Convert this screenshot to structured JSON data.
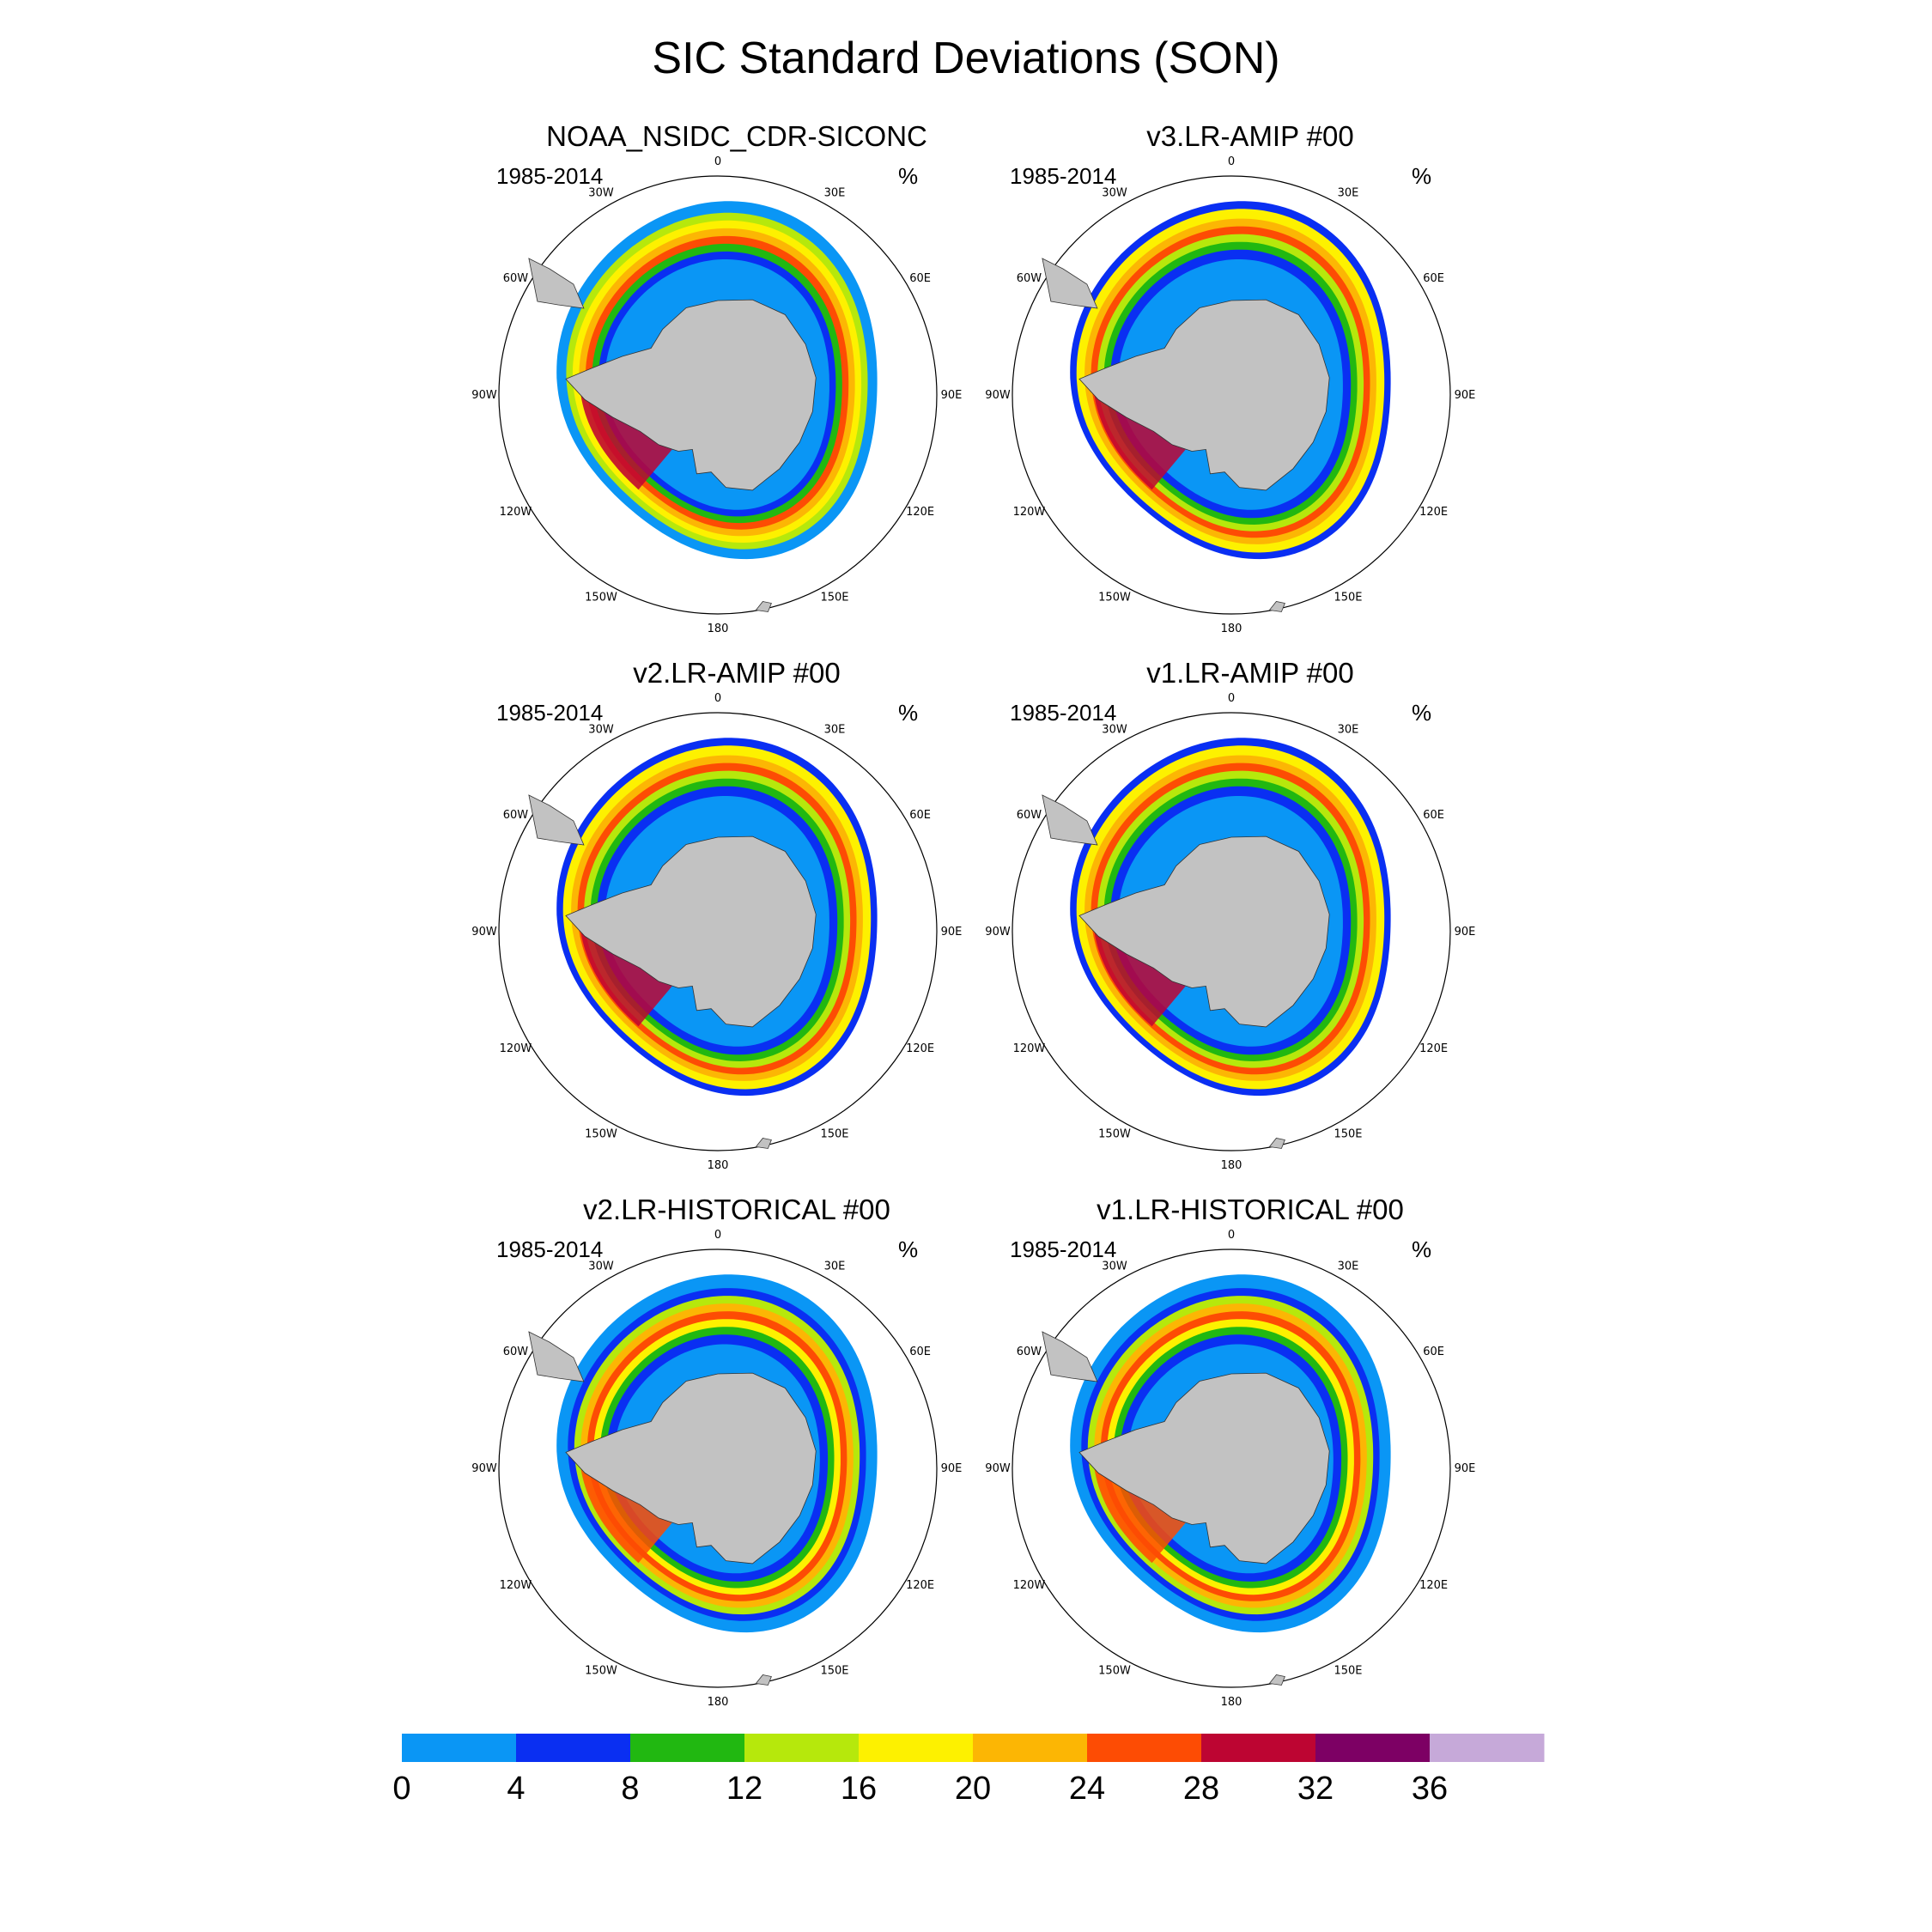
{
  "title": "SIC Standard Deviations (SON)",
  "panels": [
    {
      "title": "NOAA_NSIDC_CDR-SICONC",
      "years": "1985-2014",
      "units": "%",
      "style": "obs"
    },
    {
      "title": "v3.LR-AMIP  #00",
      "years": "1985-2014",
      "units": "%",
      "style": "amip"
    },
    {
      "title": "v2.LR-AMIP  #00",
      "years": "1985-2014",
      "units": "%",
      "style": "amip"
    },
    {
      "title": "v1.LR-AMIP  #00",
      "years": "1985-2014",
      "units": "%",
      "style": "amip"
    },
    {
      "title": "v2.LR-HISTORICAL  #00",
      "years": "1985-2014",
      "units": "%",
      "style": "hist"
    },
    {
      "title": "v1.LR-HISTORICAL  #00",
      "years": "1985-2014",
      "units": "%",
      "style": "hist"
    }
  ],
  "longitude_labels": [
    "0",
    "30E",
    "60E",
    "90E",
    "120E",
    "150E",
    "180",
    "150W",
    "120W",
    "90W",
    "60W",
    "30W"
  ],
  "colorbar": {
    "ticks": [
      "0",
      "4",
      "8",
      "12",
      "16",
      "20",
      "24",
      "28",
      "32",
      "36"
    ],
    "colors": [
      "#0a96f5",
      "#0a2ff2",
      "#21b811",
      "#b6e80c",
      "#fdf100",
      "#fcb604",
      "#fd4c04",
      "#bd0532",
      "#7d0064",
      "#c6a9d9"
    ]
  },
  "land_color": "#c2c2c2"
}
